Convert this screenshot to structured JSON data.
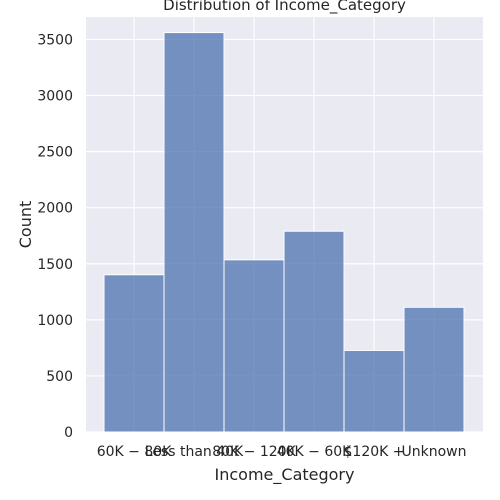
{
  "chart_data": {
    "type": "bar",
    "title": "Distribution of Income_Category",
    "xlabel": "Income_Category",
    "ylabel": "Count",
    "categories": [
      "$60K - $80K",
      "Less than $40K",
      "$80K - $120K",
      "$40K - $60K",
      "$120K +",
      "Unknown"
    ],
    "category_labels": [
      "60K − 80K",
      "Less than 40K",
      "80K − 120K",
      "40K − 60K",
      "$120K +",
      "Unknown"
    ],
    "values": [
      1402,
      3561,
      1535,
      1790,
      727,
      1112
    ],
    "ylim": [
      0,
      3700
    ],
    "yticks": [
      0,
      500,
      1000,
      1500,
      2000,
      2500,
      3000,
      3500
    ],
    "grid": true,
    "colors": {
      "background": "#eaeaf2",
      "grid": "#ffffff",
      "bar_fill": "#4c72b0",
      "bar_edge": "#ffffff",
      "text": "#262626"
    }
  }
}
